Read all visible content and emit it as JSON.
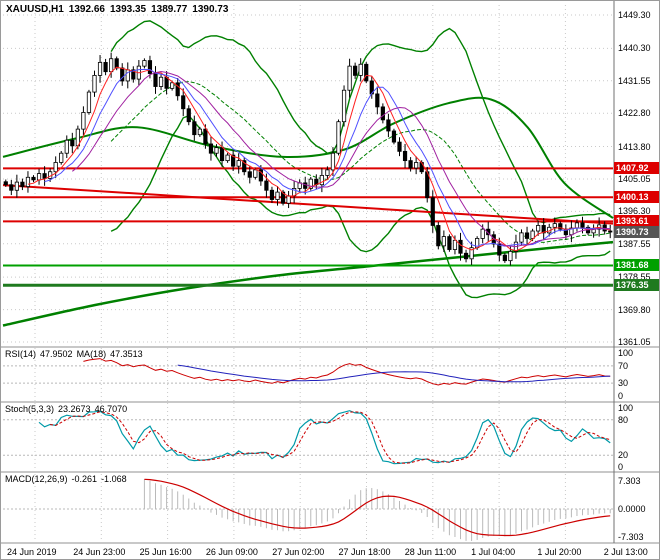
{
  "window": {
    "title": "XAUUSD,H1",
    "ohlc": {
      "open": "1392.66",
      "high": "1393.35",
      "low": "1389.77",
      "close": "1390.73"
    }
  },
  "chart_data": {
    "type": "candlestick",
    "symbol": "XAUUSD",
    "timeframe": "H1",
    "closes": [
      1403.5,
      1402,
      1404.2,
      1403,
      1405.5,
      1404.8,
      1406.5,
      1405.2,
      1407,
      1409.5,
      1412,
      1415.5,
      1414,
      1418.5,
      1423,
      1428.5,
      1433,
      1436.5,
      1434,
      1437.5,
      1435,
      1431.5,
      1434.5,
      1432,
      1435.5,
      1437,
      1433.5,
      1430,
      1432.5,
      1429.5,
      1431,
      1427.5,
      1424,
      1420.5,
      1417,
      1418.5,
      1414.5,
      1412,
      1413.5,
      1410,
      1411.5,
      1408.5,
      1410,
      1407,
      1405.5,
      1407.5,
      1404.5,
      1402,
      1399.5,
      1401.5,
      1398.5,
      1400.5,
      1402.5,
      1404,
      1402.5,
      1405,
      1403.5,
      1406,
      1407.5,
      1412,
      1420.5,
      1429,
      1435.5,
      1433,
      1436,
      1431.5,
      1428,
      1424.5,
      1421,
      1418,
      1415,
      1412.5,
      1410,
      1408,
      1409.5,
      1407,
      1400,
      1392.5,
      1387,
      1389.5,
      1386,
      1388.5,
      1385,
      1383.5,
      1386.5,
      1389,
      1391.5,
      1390,
      1387.5,
      1384.5,
      1383,
      1385.5,
      1388,
      1390.5,
      1389,
      1391,
      1392.5,
      1390.5,
      1392,
      1393,
      1391.5,
      1390,
      1391.8,
      1393.2,
      1392,
      1390.5,
      1391.5,
      1392.66,
      1391,
      1390.73
    ],
    "price_axis": {
      "ticks": [
        "1449.30",
        "1440.30",
        "1431.55",
        "1422.80",
        "1413.80",
        "1405.05",
        "1396.30",
        "1387.55",
        "1378.55",
        "1369.80",
        "1361.05"
      ]
    },
    "x_axis": {
      "labels": [
        "24 Jun 2019",
        "24 Jun 23:00",
        "25 Jun 16:00",
        "26 Jun 09:00",
        "27 Jun 02:00",
        "27 Jun 18:00",
        "28 Jun 11:00",
        "1 Jul 04:00",
        "1 Jul 20:00",
        "2 Jul 13:00"
      ]
    },
    "levels": {
      "resistance": [
        {
          "label": "1407.92",
          "price": 1407.92,
          "color": "#dd0000",
          "width": 2
        },
        {
          "label": "1400.13",
          "price": 1400.13,
          "color": "#dd0000",
          "width": 2
        },
        {
          "label": "1393.61",
          "price": 1393.61,
          "color": "#dd0000",
          "width": 2
        }
      ],
      "support": [
        {
          "label": "1381.68",
          "price": 1381.68,
          "color": "#00a000",
          "width": 2
        },
        {
          "label": "1376.35",
          "price": 1376.35,
          "color": "#1f7a1f",
          "width": 3
        }
      ],
      "current": {
        "label": "1390.73",
        "price": 1390.73,
        "color": "#555555"
      }
    },
    "trendline": {
      "points": [
        [
          0,
          1403.4
        ],
        [
          1,
          1393.0
        ]
      ],
      "color": "#dd0000"
    },
    "slow_ma_upper": [
      [
        0,
        1411
      ],
      [
        0.12,
        1416
      ],
      [
        0.22,
        1419
      ],
      [
        0.34,
        1414
      ],
      [
        0.46,
        1411
      ],
      [
        0.56,
        1413
      ],
      [
        0.64,
        1420
      ],
      [
        0.73,
        1425.5
      ],
      [
        0.8,
        1426.5
      ],
      [
        0.86,
        1419
      ],
      [
        0.92,
        1404
      ],
      [
        1,
        1394.5
      ]
    ],
    "slow_ma_lower": [
      [
        0,
        1365.5
      ],
      [
        0.15,
        1371
      ],
      [
        0.3,
        1375.5
      ],
      [
        0.45,
        1379
      ],
      [
        0.6,
        1381.5
      ],
      [
        0.75,
        1384
      ],
      [
        0.9,
        1386.5
      ],
      [
        1,
        1388
      ]
    ],
    "bollinger": {
      "period": 20,
      "deviation": 2,
      "color": "#008000"
    },
    "ma_ribbon": [
      {
        "period": 5,
        "color": "#ff2020"
      },
      {
        "period": 8,
        "color": "#5050ff"
      },
      {
        "period": 13,
        "color": "#a020a0"
      }
    ],
    "indicators": {
      "rsi": {
        "label": "RSI(14)",
        "value": "47.9502",
        "ma_label": "MA(18)",
        "ma_value": "47.3513",
        "scale": [
          "100",
          "70",
          "30",
          "0"
        ],
        "levels": [
          70,
          30
        ],
        "color": "#cc0000",
        "ma_color": "#2222bb"
      },
      "stoch": {
        "label": "Stoch(5,3,3)",
        "k_value": "23.2673",
        "d_value": "46.7070",
        "scale": [
          "100",
          "80",
          "20",
          "0"
        ],
        "levels": [
          80,
          20
        ],
        "k_color": "#009aa8",
        "d_color": "#cc0000"
      },
      "macd": {
        "label": "MACD(12,26,9)",
        "value": "-0.261",
        "signal_value": "-1.068",
        "scale": [
          "7.303",
          "0.0000",
          "-7.303"
        ],
        "color": "#b9b9b9",
        "signal_color": "#cc0000"
      }
    }
  }
}
